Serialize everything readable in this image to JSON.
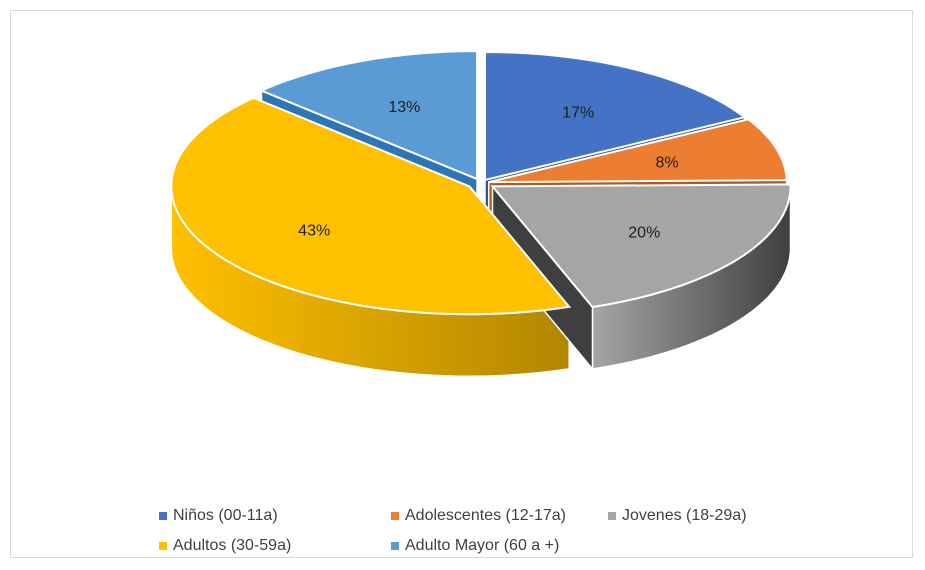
{
  "chart_data": {
    "type": "pie",
    "title": "",
    "categories": [
      "Niños (00-11a)",
      "Adolescentes (12-17a)",
      "Jovenes (18-29a)",
      "Adultos (30-59a)",
      "Adulto Mayor (60 a +)"
    ],
    "values": [
      17,
      8,
      20,
      43,
      13
    ],
    "labels": [
      "17%",
      "8%",
      "20%",
      "43%",
      "13%"
    ],
    "colors": [
      "#4472C4",
      "#ED7D31",
      "#A5A5A5",
      "#FFC000",
      "#5B9BD5"
    ],
    "side_colors": [
      "#2F528F",
      "#AE5A21",
      "#3F3F3F",
      "#B38600",
      "#2E75B6"
    ],
    "style": "3d-exploded",
    "legend_position": "bottom"
  }
}
